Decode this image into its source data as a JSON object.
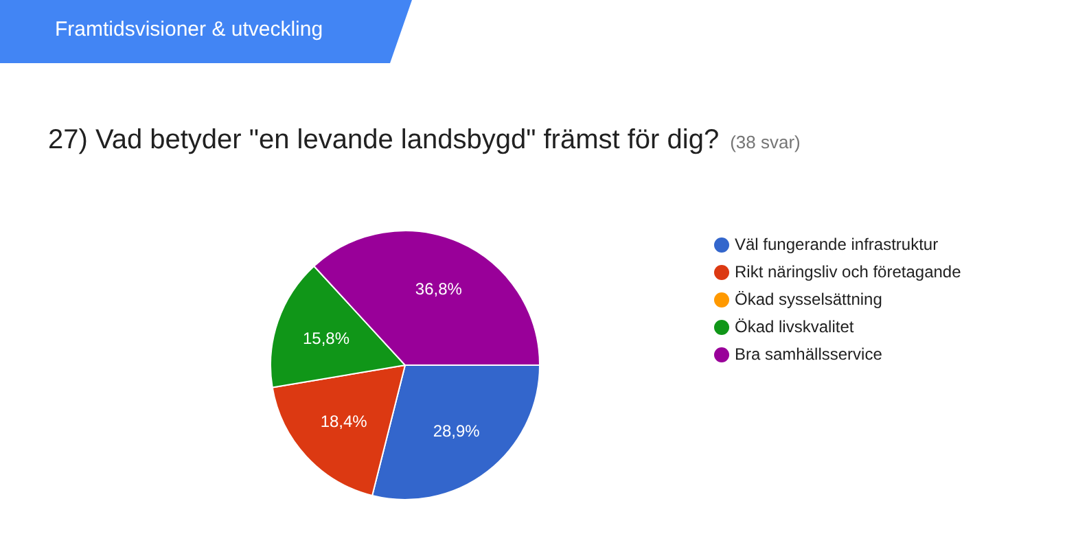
{
  "chart_data": {
    "type": "pie",
    "title": "27) Vad betyder \"en levande landsbygd\" främst för dig?",
    "subtitle": "(38 svar)",
    "annotations": [
      "Framtidsvisioner & utveckling"
    ],
    "categories": [
      "Väl fungerande infrastruktur",
      "Rikt näringsliv och företagande",
      "Ökad sysselsättning",
      "Ökad livskvalitet",
      "Bra samhällsservice"
    ],
    "values": [
      28.9,
      18.4,
      0,
      15.8,
      36.8
    ],
    "colors": [
      "#3366cc",
      "#dc3912",
      "#ff9900",
      "#109618",
      "#990099"
    ],
    "value_labels": [
      "28,9%",
      "18,4%",
      null,
      "15,8%",
      "36,8%"
    ],
    "legend": "right"
  }
}
